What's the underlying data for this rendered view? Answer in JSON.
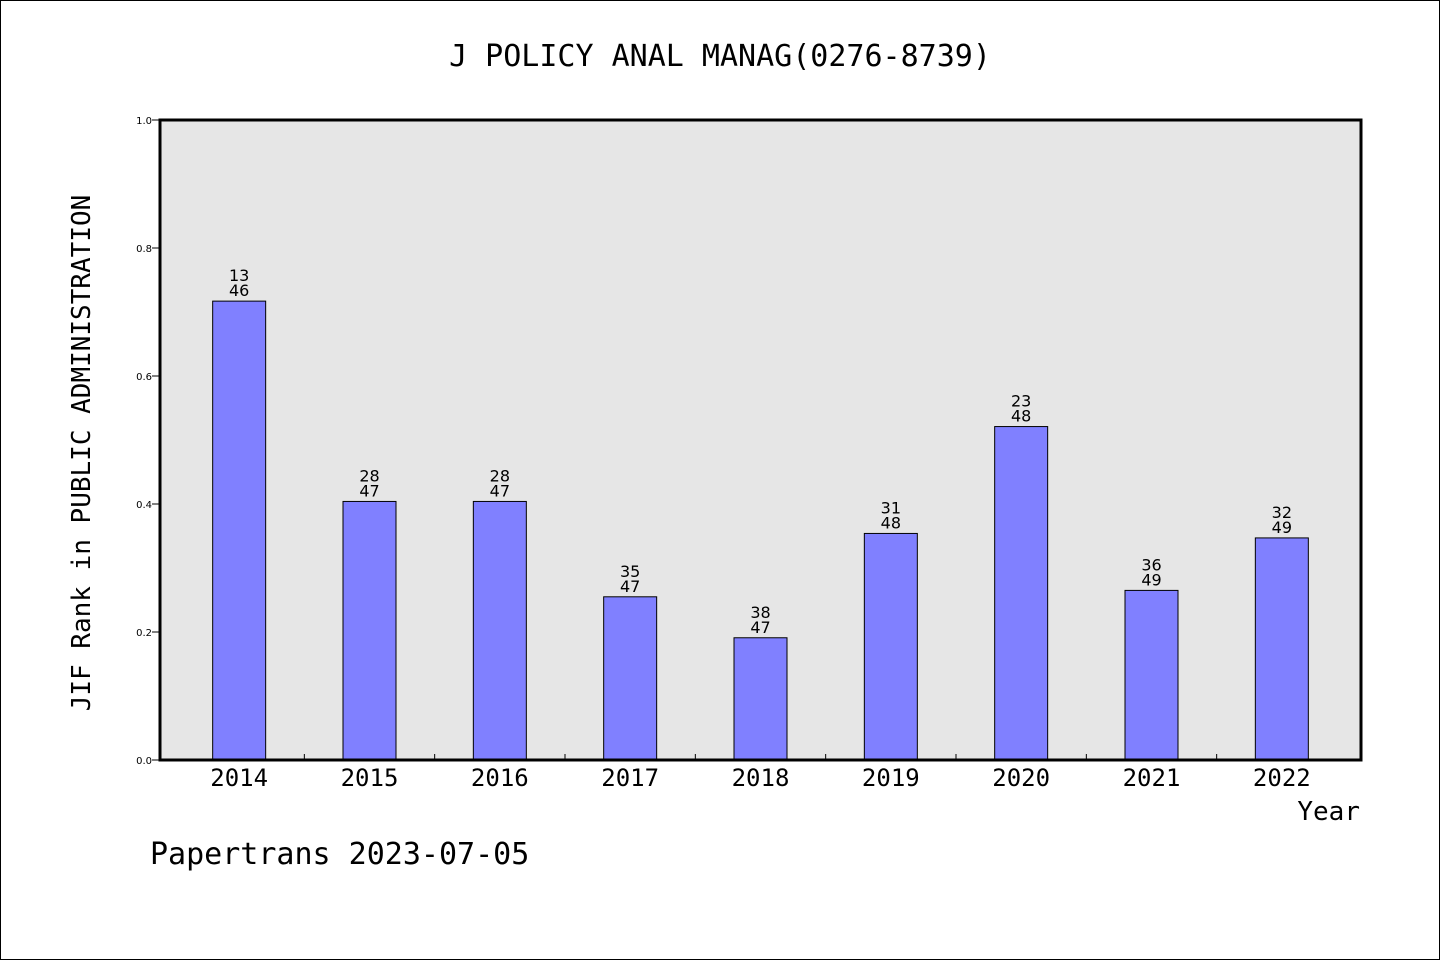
{
  "chart_data": {
    "type": "bar",
    "title": "J POLICY ANAL MANAG(0276-8739)",
    "xlabel": "Year",
    "ylabel": "JIF Rank in PUBLIC ADMINISTRATION",
    "ylim": [
      0,
      1.0
    ],
    "yticks": [
      "0.0",
      "0.2",
      "0.4",
      "0.6",
      "0.8",
      "1.0"
    ],
    "grid": false,
    "bar_color": "#8080ff",
    "plot_background": "#e6e6e6",
    "categories": [
      "2014",
      "2015",
      "2016",
      "2017",
      "2018",
      "2019",
      "2020",
      "2021",
      "2022"
    ],
    "values": [
      0.717,
      0.404,
      0.404,
      0.255,
      0.191,
      0.354,
      0.521,
      0.265,
      0.347
    ],
    "labels": [
      {
        "rank": "13",
        "total": "46"
      },
      {
        "rank": "28",
        "total": "47"
      },
      {
        "rank": "28",
        "total": "47"
      },
      {
        "rank": "35",
        "total": "47"
      },
      {
        "rank": "38",
        "total": "47"
      },
      {
        "rank": "31",
        "total": "48"
      },
      {
        "rank": "23",
        "total": "48"
      },
      {
        "rank": "36",
        "total": "49"
      },
      {
        "rank": "32",
        "total": "49"
      }
    ]
  },
  "footer": "Papertrans 2023-07-05"
}
